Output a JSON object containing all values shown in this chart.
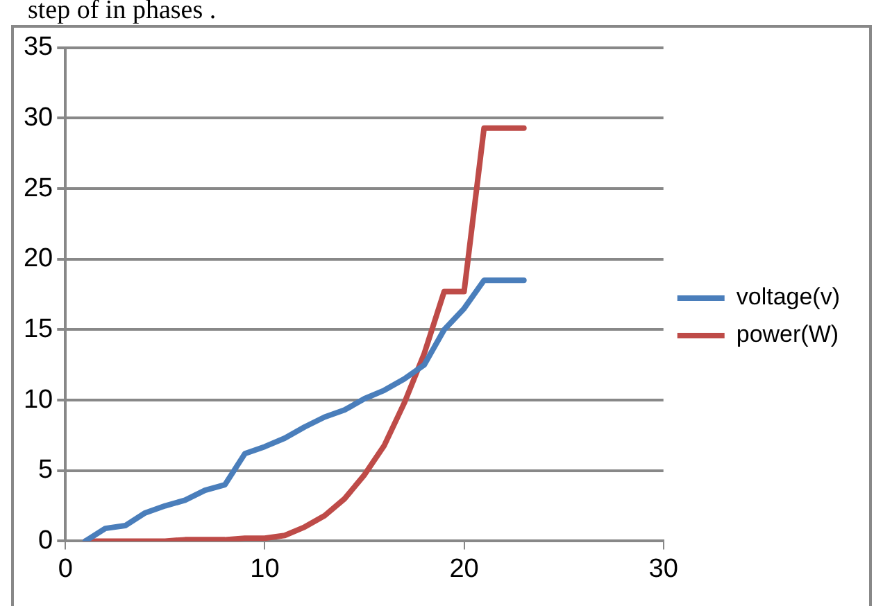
{
  "chart_data": {
    "type": "line",
    "annotations": [
      "step of in phases ."
    ],
    "x": [
      1,
      2,
      3,
      4,
      5,
      6,
      7,
      8,
      9,
      10,
      11,
      12,
      13,
      14,
      15,
      16,
      17,
      18,
      19,
      20,
      21,
      22,
      23
    ],
    "series": [
      {
        "name": "voltage(v)",
        "color": "#4a7ebb",
        "values": [
          0,
          0.9,
          1.1,
          2,
          2.5,
          2.9,
          3.6,
          4,
          6.2,
          6.7,
          7.3,
          8.1,
          8.8,
          9.3,
          10.1,
          10.7,
          11.5,
          12.5,
          15,
          16.5,
          18.5,
          18.5,
          18.5
        ]
      },
      {
        "name": "power(W)",
        "color": "#be4b48",
        "values": [
          0,
          0,
          0,
          0,
          0,
          0.1,
          0.1,
          0.1,
          0.2,
          0.2,
          0.4,
          1,
          1.8,
          3,
          4.7,
          6.8,
          9.8,
          13.3,
          17.7,
          17.7,
          29.3,
          29.3,
          29.3
        ]
      }
    ],
    "xlim": [
      0,
      30
    ],
    "xticks": [
      0,
      10,
      20,
      30
    ],
    "ylim": [
      0,
      35
    ],
    "yticks": [
      0,
      5,
      10,
      15,
      20,
      25,
      30,
      35
    ],
    "grid": "y",
    "legend": "right",
    "marker": "none",
    "line_style": "solid"
  }
}
